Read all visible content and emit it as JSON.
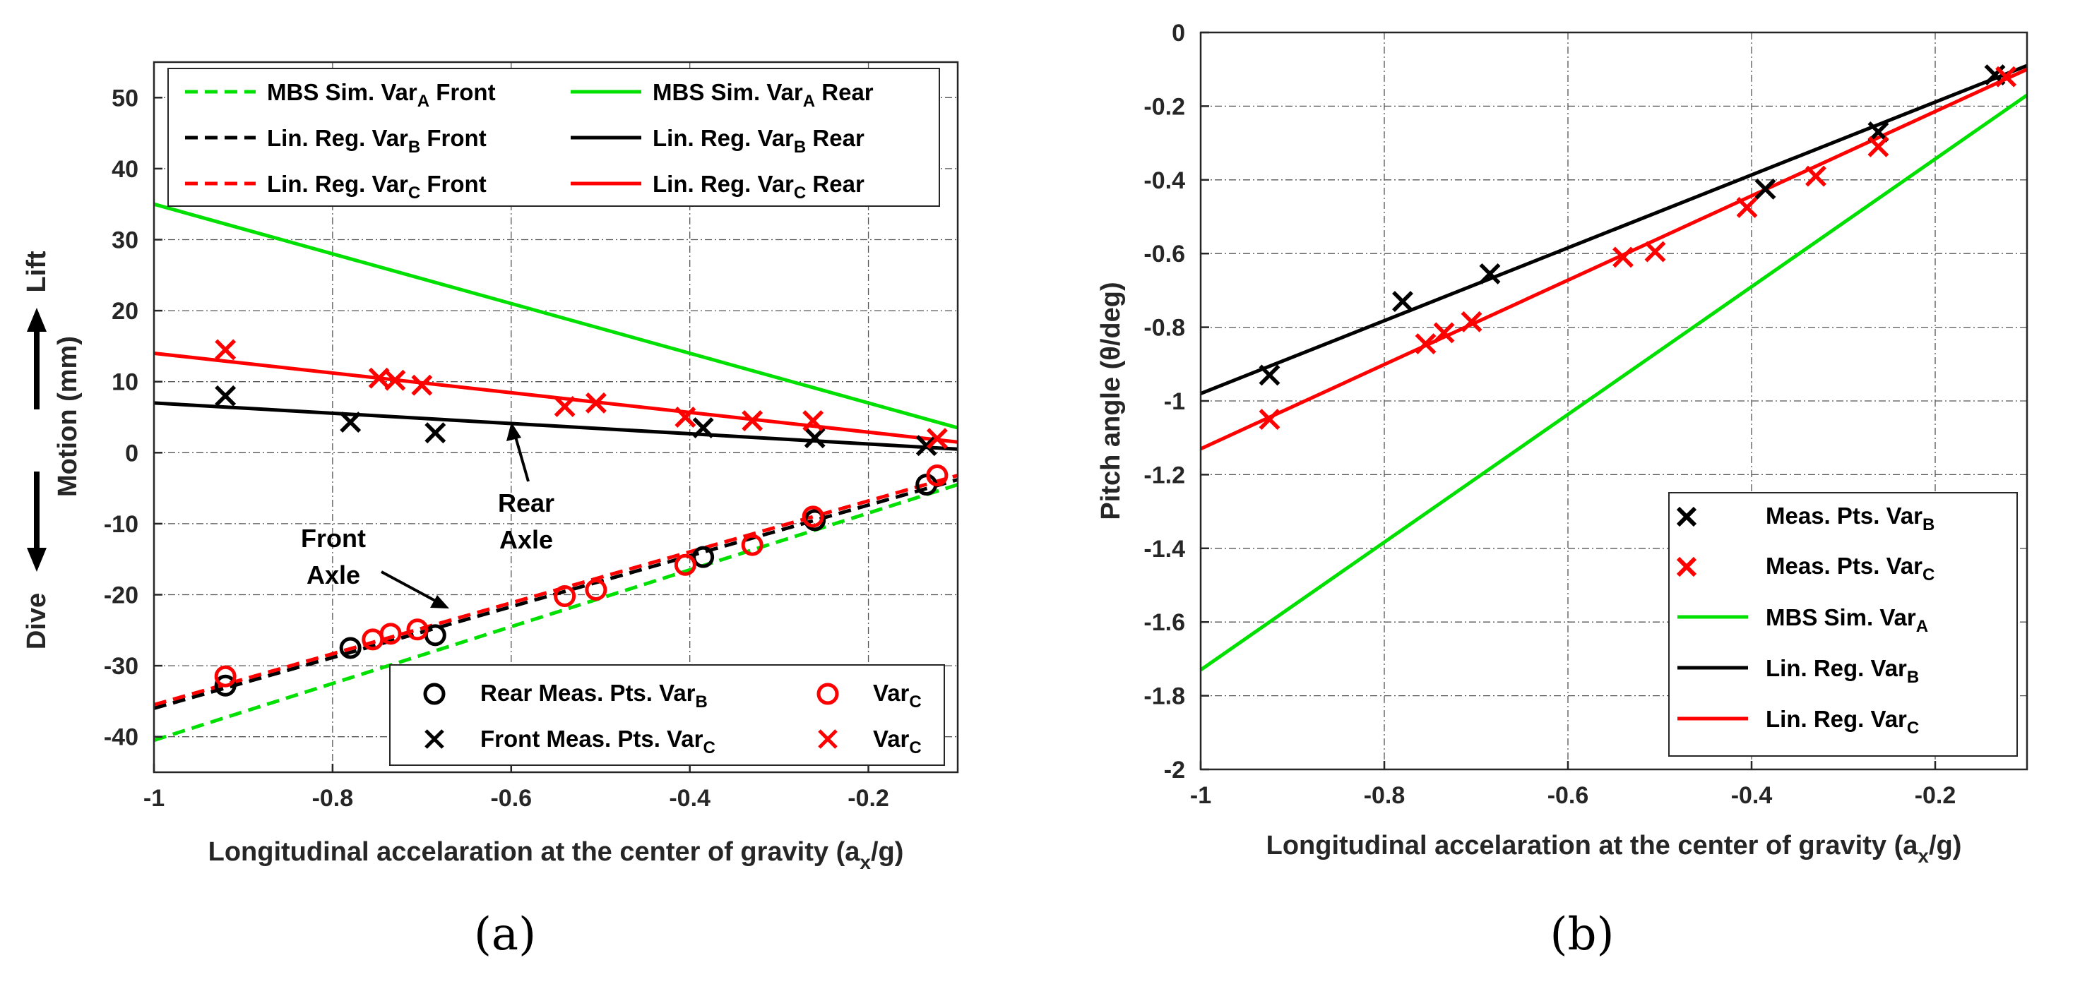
{
  "chart_data": [
    {
      "panel": "(a)",
      "type": "line",
      "xlabel": "Longitudinal accelaration at the center of gravity (a",
      "xlabel_sub": "x",
      "xlabel_end": "/g)",
      "ylabel": "Motion (mm)",
      "ylabel_lift": "Lift",
      "ylabel_dive": "Dive",
      "xlim": [
        -1,
        -0.1
      ],
      "ylim": [
        -45,
        55
      ],
      "xticks": [
        -1,
        -0.8,
        -0.6,
        -0.4,
        -0.2
      ],
      "xtick_labels": [
        "-1",
        "-0.8",
        "-0.6",
        "-0.4",
        "-0.2"
      ],
      "yticks": [
        -40,
        -30,
        -20,
        -10,
        0,
        10,
        20,
        30,
        40,
        50
      ],
      "ytick_labels": [
        "-40",
        "-30",
        "-20",
        "-10",
        "0",
        "10",
        "20",
        "30",
        "40",
        "50"
      ],
      "grid": true,
      "series": [
        {
          "name": "MBS Sim. Var_A Front",
          "label": "MBS Sim. Var",
          "sub": "A",
          "suffix": " Front",
          "kind": "line",
          "style": "dashed",
          "color": "#00e000",
          "x": [
            -1,
            -0.1
          ],
          "y": [
            -40.5,
            -4.5
          ]
        },
        {
          "name": "Lin. Reg. Var_B Front",
          "label": "Lin. Reg. Var",
          "sub": "B",
          "suffix": " Front",
          "kind": "line",
          "style": "dashed",
          "color": "#000000",
          "x": [
            -1,
            -0.1
          ],
          "y": [
            -36,
            -3.8
          ]
        },
        {
          "name": "Lin. Reg. Var_C Front",
          "label": "Lin. Reg. Var",
          "sub": "C",
          "suffix": " Front",
          "kind": "line",
          "style": "dashed",
          "color": "#ff0000",
          "x": [
            -1,
            -0.1
          ],
          "y": [
            -35.5,
            -3.2
          ]
        },
        {
          "name": "MBS Sim. Var_A Rear",
          "label": "MBS Sim. Var",
          "sub": "A",
          "suffix": " Rear",
          "kind": "line",
          "style": "solid",
          "color": "#00e000",
          "x": [
            -1,
            -0.1
          ],
          "y": [
            35,
            3.5
          ]
        },
        {
          "name": "Lin. Reg. Var_B Rear",
          "label": "Lin. Reg. Var",
          "sub": "B",
          "suffix": " Rear",
          "kind": "line",
          "style": "solid",
          "color": "#000000",
          "x": [
            -1,
            -0.1
          ],
          "y": [
            7,
            0.5
          ]
        },
        {
          "name": "Lin. Reg. Var_C Rear",
          "label": "Lin. Reg. Var",
          "sub": "C",
          "suffix": " Rear",
          "kind": "line",
          "style": "solid",
          "color": "#ff0000",
          "x": [
            -1,
            -0.1
          ],
          "y": [
            14,
            1.5
          ]
        },
        {
          "name": "Rear Meas. Pts. Var_B",
          "label": "Rear Meas. Pts. Var",
          "sub": "B",
          "kind": "marker",
          "marker": "o",
          "color": "#000000",
          "x": [
            -0.92,
            -0.78,
            -0.685,
            -0.385,
            -0.26,
            -0.135
          ],
          "y": [
            -32.8,
            -27.5,
            -25.7,
            -14.7,
            -9.5,
            -4.5
          ]
        },
        {
          "name": "Front Meas. Pts. Var_C",
          "label": "Front Meas. Pts. Var",
          "sub": "C",
          "kind": "marker",
          "marker": "x",
          "color": "#000000",
          "x": [
            -0.92,
            -0.78,
            -0.685,
            -0.385,
            -0.26,
            -0.135
          ],
          "y": [
            8,
            4.3,
            2.8,
            3.5,
            2.1,
            1
          ]
        },
        {
          "name": "Var_C (o)",
          "label": "Var",
          "sub": "C",
          "kind": "marker",
          "marker": "o",
          "color": "#ff0000",
          "x": [
            -0.92,
            -0.755,
            -0.735,
            -0.705,
            -0.54,
            -0.505,
            -0.405,
            -0.33,
            -0.262,
            -0.123
          ],
          "y": [
            -31.5,
            -26.3,
            -25.5,
            -24.9,
            -20.2,
            -19.3,
            -15.8,
            -13,
            -9,
            -3.2
          ]
        },
        {
          "name": "Var_C (x)",
          "label": "Var",
          "sub": "C",
          "kind": "marker",
          "marker": "x",
          "color": "#ff0000",
          "x": [
            -0.92,
            -0.748,
            -0.73,
            -0.7,
            -0.54,
            -0.505,
            -0.405,
            -0.33,
            -0.262,
            -0.123
          ],
          "y": [
            14.5,
            10.5,
            10.2,
            9.5,
            6.5,
            7,
            5,
            4.5,
            4.5,
            2
          ]
        }
      ],
      "annotations": [
        {
          "lines": [
            "Rear",
            "Axle"
          ]
        },
        {
          "lines": [
            "Front",
            "Axle"
          ]
        }
      ]
    },
    {
      "panel": "(b)",
      "type": "line",
      "xlabel": "Longitudinal accelaration at the center of gravity (a",
      "xlabel_sub": "x",
      "xlabel_end": "/g)",
      "ylabel": "Pitch angle (θ/deg)",
      "xlim": [
        -1,
        -0.1
      ],
      "ylim": [
        -2,
        0
      ],
      "xticks": [
        -1,
        -0.8,
        -0.6,
        -0.4,
        -0.2
      ],
      "xtick_labels": [
        "-1",
        "-0.8",
        "-0.6",
        "-0.4",
        "-0.2"
      ],
      "yticks": [
        -2,
        -1.8,
        -1.6,
        -1.4,
        -1.2,
        -1,
        -0.8,
        -0.6,
        -0.4,
        -0.2,
        0
      ],
      "ytick_labels": [
        "-2",
        "-1.8",
        "-1.6",
        "-1.4",
        "-1.2",
        "-1",
        "-0.8",
        "-0.6",
        "-0.4",
        "-0.2",
        "0"
      ],
      "grid": true,
      "series": [
        {
          "name": "Meas. Pts. Var_B",
          "label": "Meas. Pts. Var",
          "sub": "B",
          "kind": "marker",
          "marker": "x",
          "color": "#000000",
          "x": [
            -0.925,
            -0.78,
            -0.685,
            -0.385,
            -0.262,
            -0.135
          ],
          "y": [
            -0.93,
            -0.73,
            -0.655,
            -0.425,
            -0.27,
            -0.115
          ]
        },
        {
          "name": "Meas. Pts. Var_C",
          "label": "Meas. Pts. Var",
          "sub": "C",
          "kind": "marker",
          "marker": "x",
          "color": "#ff0000",
          "x": [
            -0.925,
            -0.755,
            -0.735,
            -0.705,
            -0.54,
            -0.505,
            -0.405,
            -0.33,
            -0.262,
            -0.123
          ],
          "y": [
            -1.05,
            -0.845,
            -0.815,
            -0.785,
            -0.61,
            -0.595,
            -0.475,
            -0.39,
            -0.31,
            -0.12
          ]
        },
        {
          "name": "MBS Sim. Var_A",
          "label": "MBS Sim. Var",
          "sub": "A",
          "kind": "line",
          "style": "solid",
          "color": "#00e000",
          "x": [
            -1,
            -0.1
          ],
          "y": [
            -1.73,
            -0.17
          ]
        },
        {
          "name": "Lin. Reg. Var_B",
          "label": "Lin. Reg. Var",
          "sub": "B",
          "kind": "line",
          "style": "solid",
          "color": "#000000",
          "x": [
            -1,
            -0.1
          ],
          "y": [
            -0.98,
            -0.09
          ]
        },
        {
          "name": "Lin. Reg. Var_C",
          "label": "Lin. Reg. Var",
          "sub": "C",
          "kind": "line",
          "style": "solid",
          "color": "#ff0000",
          "x": [
            -1,
            -0.1
          ],
          "y": [
            -1.13,
            -0.1
          ]
        }
      ]
    }
  ]
}
